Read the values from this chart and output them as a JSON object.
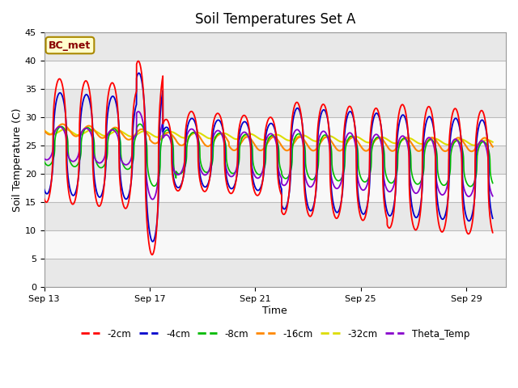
{
  "title": "Soil Temperatures Set A",
  "xlabel": "Time",
  "ylabel": "Soil Temperature (C)",
  "ylim": [
    0,
    45
  ],
  "yticks": [
    0,
    5,
    10,
    15,
    20,
    25,
    30,
    35,
    40,
    45
  ],
  "xtick_labels": [
    "Sep 13",
    "Sep 17",
    "Sep 21",
    "Sep 25",
    "Sep 29"
  ],
  "background_color": "#ffffff",
  "plot_bg_color": "#ffffff",
  "grid_color": "#cccccc",
  "label_box_text": "BC_met",
  "label_box_facecolor": "#ffffcc",
  "label_box_edgecolor": "#aa8800",
  "label_box_textcolor": "#880000",
  "series_colors": {
    "-2cm": "#ff0000",
    "-4cm": "#0000cc",
    "-8cm": "#00bb00",
    "-16cm": "#ff8800",
    "-32cm": "#dddd00",
    "Theta_Temp": "#8800cc"
  },
  "band_colors": [
    "#e8e8e8",
    "#f8f8f8"
  ],
  "figsize": [
    6.4,
    4.8
  ],
  "dpi": 100
}
